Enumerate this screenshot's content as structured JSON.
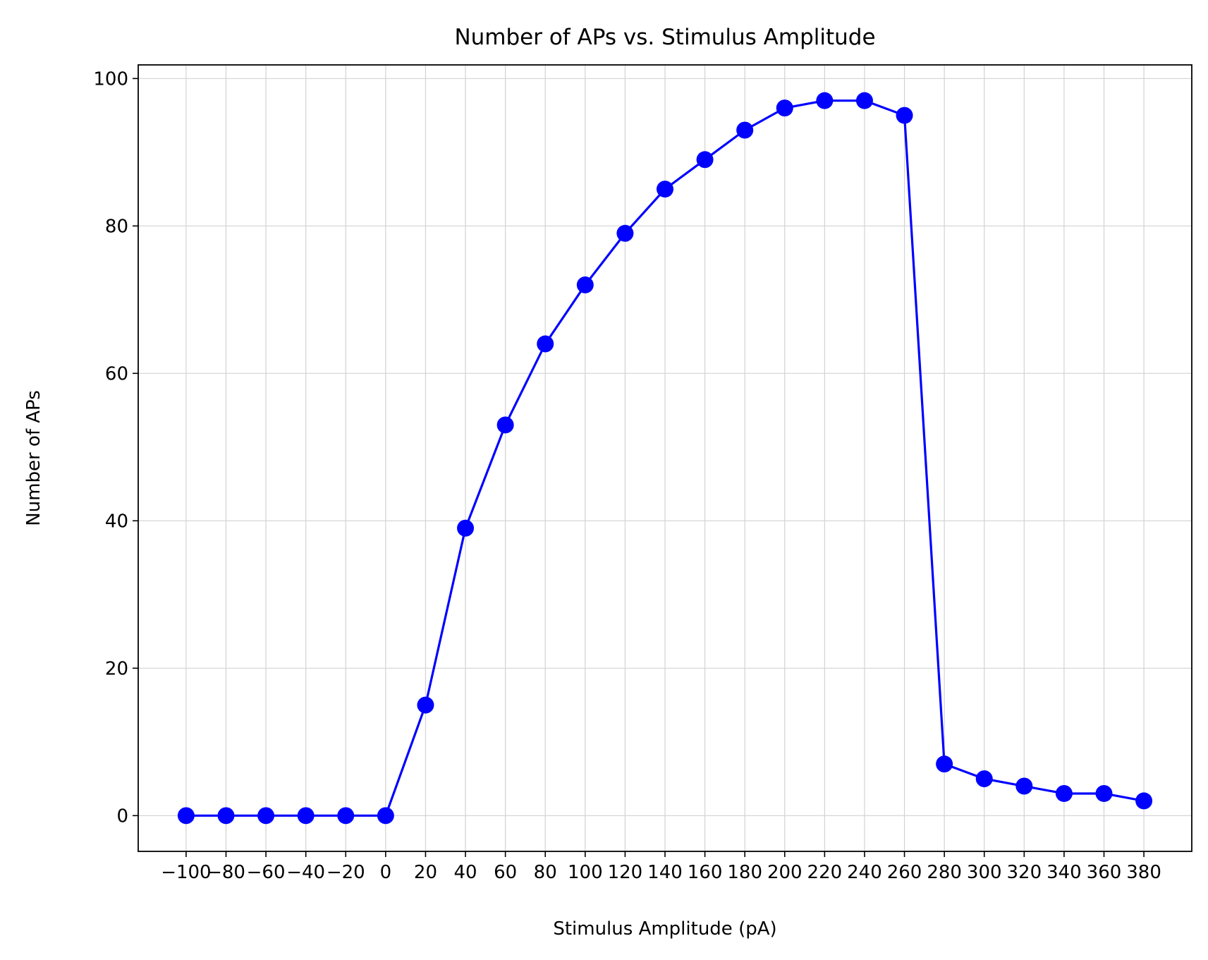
{
  "chart_data": {
    "type": "line",
    "title": "Number of APs vs. Stimulus Amplitude",
    "xlabel": "Stimulus Amplitude (pA)",
    "ylabel": "Number of APs",
    "x": [
      -100,
      -80,
      -60,
      -40,
      -20,
      0,
      20,
      40,
      60,
      80,
      100,
      120,
      140,
      160,
      180,
      200,
      220,
      240,
      260,
      280,
      300,
      320,
      340,
      360,
      380
    ],
    "series": [
      {
        "values": [
          0,
          0,
          0,
          0,
          0,
          0,
          15,
          39,
          53,
          64,
          72,
          79,
          85,
          89,
          93,
          96,
          97,
          97,
          95,
          7,
          5,
          4,
          3,
          3,
          2
        ],
        "color": "#0000ff",
        "marker": "circle"
      }
    ],
    "xticks": [
      -100,
      -80,
      -60,
      -40,
      -20,
      0,
      20,
      40,
      60,
      80,
      100,
      120,
      140,
      160,
      180,
      200,
      220,
      240,
      260,
      280,
      300,
      320,
      340,
      360,
      380
    ],
    "xtick_labels": [
      "−100",
      "−80",
      "−60",
      "−40",
      "−20",
      "0",
      "20",
      "40",
      "60",
      "80",
      "100",
      "120",
      "140",
      "160",
      "180",
      "200",
      "220",
      "240",
      "260",
      "280",
      "300",
      "320",
      "340",
      "360",
      "380"
    ],
    "yticks": [
      0,
      20,
      40,
      60,
      80,
      100
    ],
    "ytick_labels": [
      "0",
      "20",
      "40",
      "60",
      "80",
      "100"
    ],
    "xlim": [
      -124,
      404
    ],
    "ylim": [
      -4.85,
      101.85
    ],
    "grid": true,
    "grid_color": "#d3d3d3",
    "legend": false
  }
}
